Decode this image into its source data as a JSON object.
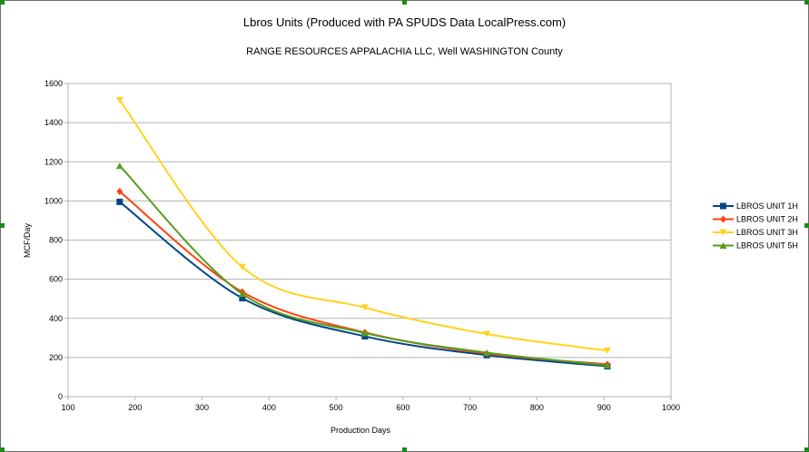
{
  "chart_data": {
    "type": "line",
    "title": "Lbros Units (Produced with PA SPUDS Data LocalPress.com)",
    "subtitle": "RANGE RESOURCES APPALACHIA LLC, Well  WASHINGTON County",
    "xlabel": "Production Days",
    "ylabel": "MCF/Day",
    "xlim": [
      100,
      1000
    ],
    "ylim": [
      0,
      1600
    ],
    "xticks": [
      100,
      200,
      300,
      400,
      500,
      600,
      700,
      800,
      900,
      1000
    ],
    "yticks": [
      0,
      200,
      400,
      600,
      800,
      1000,
      1200,
      1400,
      1600
    ],
    "grid": "horizontal",
    "legend_position": "right",
    "series": [
      {
        "name": "LBROS UNIT 1H",
        "color": "#004586",
        "marker": "square",
        "x": [
          177,
          360,
          543,
          725,
          905
        ],
        "y": [
          995,
          503,
          308,
          212,
          155
        ]
      },
      {
        "name": "LBROS UNIT 2H",
        "color": "#ff420e",
        "marker": "diamond",
        "x": [
          177,
          360,
          543,
          725,
          905
        ],
        "y": [
          1048,
          535,
          328,
          220,
          165
        ]
      },
      {
        "name": "LBROS UNIT 3H",
        "color": "#ffd320",
        "marker": "triangle-down",
        "x": [
          177,
          360,
          543,
          725,
          905
        ],
        "y": [
          1515,
          662,
          455,
          320,
          235
        ]
      },
      {
        "name": "LBROS UNIT 5H",
        "color": "#579d1c",
        "marker": "triangle-up",
        "x": [
          177,
          360,
          543,
          725,
          905
        ],
        "y": [
          1180,
          525,
          325,
          225,
          160
        ]
      }
    ]
  }
}
